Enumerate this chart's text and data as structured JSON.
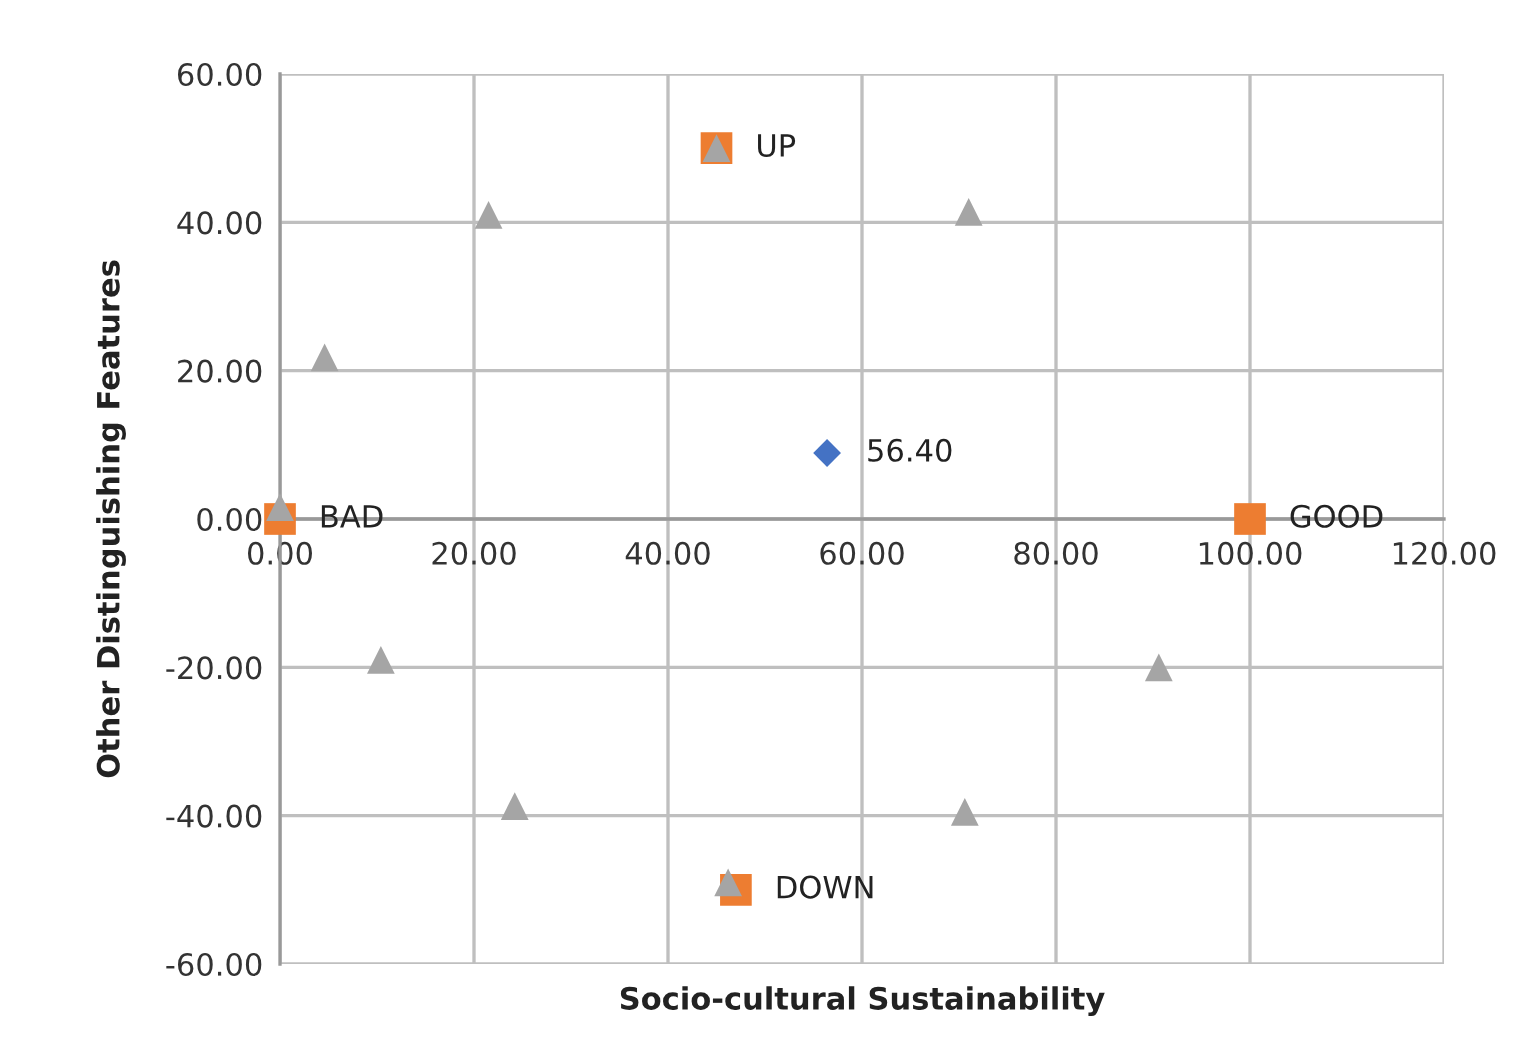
{
  "chart_data": {
    "type": "scatter",
    "xlabel": "Socio-cultural Sustainability",
    "ylabel": "Other Distinguishing Features",
    "xlim": [
      0,
      120
    ],
    "ylim": [
      -60,
      60
    ],
    "xticks": [
      {
        "value": 0,
        "label": "0.00"
      },
      {
        "value": 20,
        "label": "20.00"
      },
      {
        "value": 40,
        "label": "40.00"
      },
      {
        "value": 60,
        "label": "60.00"
      },
      {
        "value": 80,
        "label": "80.00"
      },
      {
        "value": 100,
        "label": "100.00"
      },
      {
        "value": 120,
        "label": "120.00"
      }
    ],
    "yticks": [
      {
        "value": -60,
        "label": "-60.00"
      },
      {
        "value": -40,
        "label": "-40.00"
      },
      {
        "value": -20,
        "label": "-20.00"
      },
      {
        "value": 0,
        "label": "0.00"
      },
      {
        "value": 20,
        "label": "20.00"
      },
      {
        "value": 40,
        "label": "40.00"
      },
      {
        "value": 60,
        "label": "60.00"
      }
    ],
    "grid": true,
    "series": [
      {
        "color": "#a5a5a5",
        "marker": "triangle",
        "x": [
          0,
          4.6,
          21.5,
          45,
          71,
          10.4,
          24.2,
          46.2,
          70.6,
          90.6
        ],
        "values": [
          1.6,
          21.8,
          41,
          50,
          41.4,
          -19,
          -38.7,
          -49,
          -39.5,
          -20
        ]
      },
      {
        "color": "#ed7d31",
        "marker": "square",
        "x": [
          0,
          100,
          45,
          47
        ],
        "values": [
          0,
          0,
          50,
          -50
        ]
      },
      {
        "color": "#4472c4",
        "marker": "diamond",
        "x": [
          56.4
        ],
        "values": [
          8.9
        ]
      }
    ],
    "annotations": [
      {
        "text": "BAD",
        "x": 0,
        "y": 0
      },
      {
        "text": "GOOD",
        "x": 100,
        "y": 0
      },
      {
        "text": "UP",
        "x": 45,
        "y": 50
      },
      {
        "text": "DOWN",
        "x": 47,
        "y": -50
      },
      {
        "text": "56.40",
        "x": 56.4,
        "y": 8.9
      }
    ]
  }
}
